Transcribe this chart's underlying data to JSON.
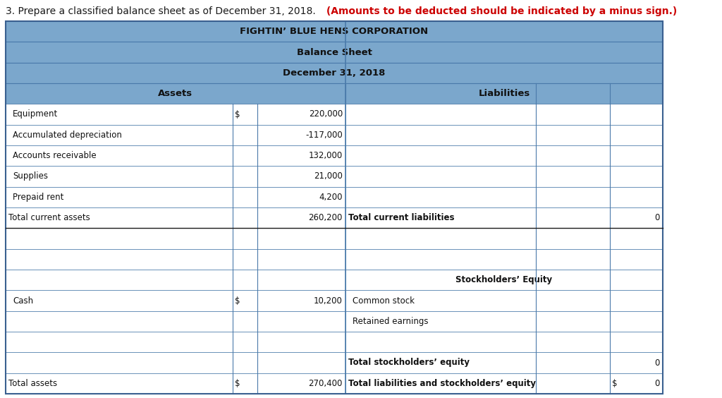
{
  "title_line": "3. Prepare a classified balance sheet as of December 31, 2018.",
  "title_line_red": "(Amounts to be deducted should be indicated by a minus sign.)",
  "company_name": "FIGHTIN’ BLUE HENS CORPORATION",
  "sheet_title": "Balance Sheet",
  "sheet_date": "December 31, 2018",
  "header_bg": "#7ba7cc",
  "border_color": "#4a7aaa",
  "assets_col_header": "Assets",
  "liabilities_col_header": "Liabilities",
  "asset_rows": [
    {
      "label": "Equipment",
      "dollar": "$",
      "value": "220,000",
      "indent": true,
      "bold": false
    },
    {
      "label": "Accumulated depreciation",
      "dollar": "",
      "value": "-117,000",
      "indent": true,
      "bold": false
    },
    {
      "label": "Accounts receivable",
      "dollar": "",
      "value": "132,000",
      "indent": true,
      "bold": false
    },
    {
      "label": "Supplies",
      "dollar": "",
      "value": "21,000",
      "indent": true,
      "bold": false
    },
    {
      "label": "Prepaid rent",
      "dollar": "",
      "value": "4,200",
      "indent": true,
      "bold": false
    },
    {
      "label": "Total current assets",
      "dollar": "",
      "value": "260,200",
      "indent": false,
      "bold": false
    },
    {
      "label": "",
      "dollar": "",
      "value": "",
      "indent": false,
      "bold": false
    },
    {
      "label": "",
      "dollar": "",
      "value": "",
      "indent": false,
      "bold": false
    },
    {
      "label": "",
      "dollar": "",
      "value": "",
      "indent": false,
      "bold": false
    },
    {
      "label": "Cash",
      "dollar": "$",
      "value": "10,200",
      "indent": true,
      "bold": false
    },
    {
      "label": "",
      "dollar": "",
      "value": "",
      "indent": false,
      "bold": false
    },
    {
      "label": "",
      "dollar": "",
      "value": "",
      "indent": false,
      "bold": false
    },
    {
      "label": "",
      "dollar": "",
      "value": "",
      "indent": false,
      "bold": false
    },
    {
      "label": "Total assets",
      "dollar": "$",
      "value": "270,400",
      "indent": false,
      "bold": false
    }
  ],
  "liability_rows": [
    {
      "label": "",
      "dollar": "",
      "value": "",
      "indent": true,
      "bold": false,
      "center": false
    },
    {
      "label": "",
      "dollar": "",
      "value": "",
      "indent": true,
      "bold": false,
      "center": false
    },
    {
      "label": "",
      "dollar": "",
      "value": "",
      "indent": true,
      "bold": false,
      "center": false
    },
    {
      "label": "",
      "dollar": "",
      "value": "",
      "indent": true,
      "bold": false,
      "center": false
    },
    {
      "label": "",
      "dollar": "",
      "value": "",
      "indent": true,
      "bold": false,
      "center": false
    },
    {
      "label": "Total current liabilities",
      "dollar": "",
      "value": "0",
      "indent": false,
      "bold": false,
      "center": false
    },
    {
      "label": "",
      "dollar": "",
      "value": "",
      "indent": false,
      "bold": false,
      "center": false
    },
    {
      "label": "",
      "dollar": "",
      "value": "",
      "indent": false,
      "bold": false,
      "center": false
    },
    {
      "label": "Stockholders’ Equity",
      "dollar": "",
      "value": "",
      "indent": false,
      "bold": true,
      "center": true
    },
    {
      "label": "Common stock",
      "dollar": "",
      "value": "",
      "indent": true,
      "bold": false,
      "center": false
    },
    {
      "label": "Retained earnings",
      "dollar": "",
      "value": "",
      "indent": true,
      "bold": false,
      "center": false
    },
    {
      "label": "",
      "dollar": "",
      "value": "",
      "indent": false,
      "bold": false,
      "center": false
    },
    {
      "label": "Total stockholders’ equity",
      "dollar": "",
      "value": "0",
      "indent": false,
      "bold": false,
      "center": false
    },
    {
      "label": "Total liabilities and stockholders’ equity",
      "dollar": "$",
      "value": "0",
      "indent": false,
      "bold": false,
      "center": false
    }
  ],
  "fig_bg": "#ffffff",
  "outer_border": "#3a6090"
}
